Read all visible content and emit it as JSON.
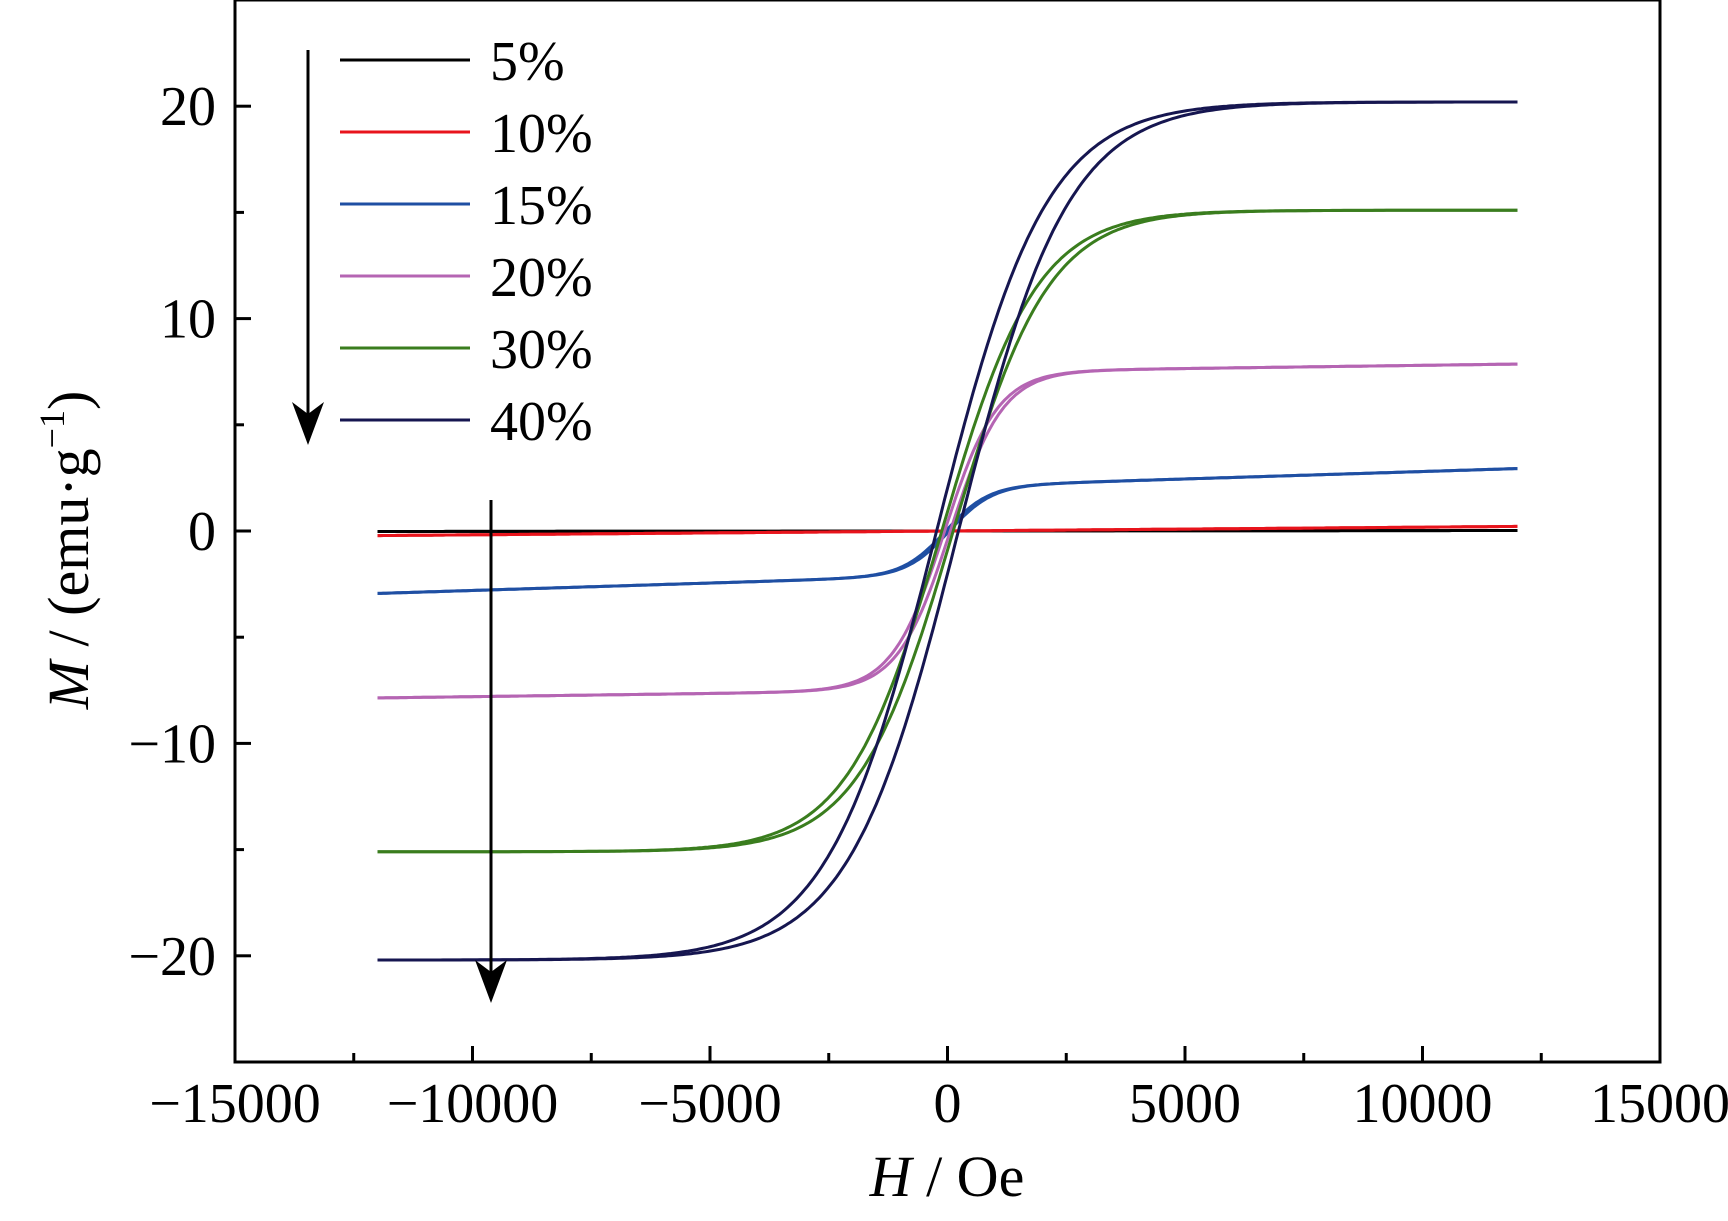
{
  "chart_data": {
    "type": "line",
    "xlabel_italic": "H",
    "xlabel_rest": " / Oe",
    "ylabel_italic": "M",
    "ylabel_rest": " / (emu·g",
    "ylabel_sup": "−1",
    "ylabel_close": ")",
    "xlim": [
      -15000,
      15000
    ],
    "ylim": [
      -25,
      25
    ],
    "x_ticks": [
      -15000,
      -10000,
      -5000,
      0,
      5000,
      10000,
      15000
    ],
    "x_tick_labels": [
      "−15000",
      "−10000",
      "−5000",
      "0",
      "5000",
      "10000",
      "15000"
    ],
    "y_ticks": [
      -20,
      -10,
      0,
      10,
      20
    ],
    "y_tick_labels": [
      "−20",
      "−10",
      "0",
      "10",
      "20"
    ],
    "grid": false,
    "legend_position": "top-left",
    "arrows": "downward arrows indicating increasing content",
    "series": [
      {
        "name": "5%",
        "color": "#000000",
        "ms": 0.0,
        "b": 0.0,
        "hc": 0,
        "slope": 2e-06
      },
      {
        "name": "10%",
        "color": "#e8141c",
        "ms": 0.0,
        "b": 0.0,
        "hc": 0,
        "slope": 1.8e-05
      },
      {
        "name": "15%",
        "color": "#1f4fa3",
        "ms": 2.1,
        "b": 900,
        "hc": 40,
        "slope": 7e-05
      },
      {
        "name": "20%",
        "color": "#b565b3",
        "ms": 7.5,
        "b": 1100,
        "hc": 60,
        "slope": 3e-05
      },
      {
        "name": "30%",
        "color": "#3a7d1e",
        "ms": 15.1,
        "b": 2000,
        "hc": 120,
        "slope": 0.0
      },
      {
        "name": "40%",
        "color": "#161650",
        "ms": 20.2,
        "b": 2300,
        "hc": 230,
        "slope": 0.0
      }
    ],
    "x_data": [
      -12000,
      -8000,
      -5000,
      -3000,
      -2000,
      -1000,
      -500,
      0,
      500,
      1000,
      2000,
      3000,
      5000,
      8000,
      12000
    ]
  }
}
